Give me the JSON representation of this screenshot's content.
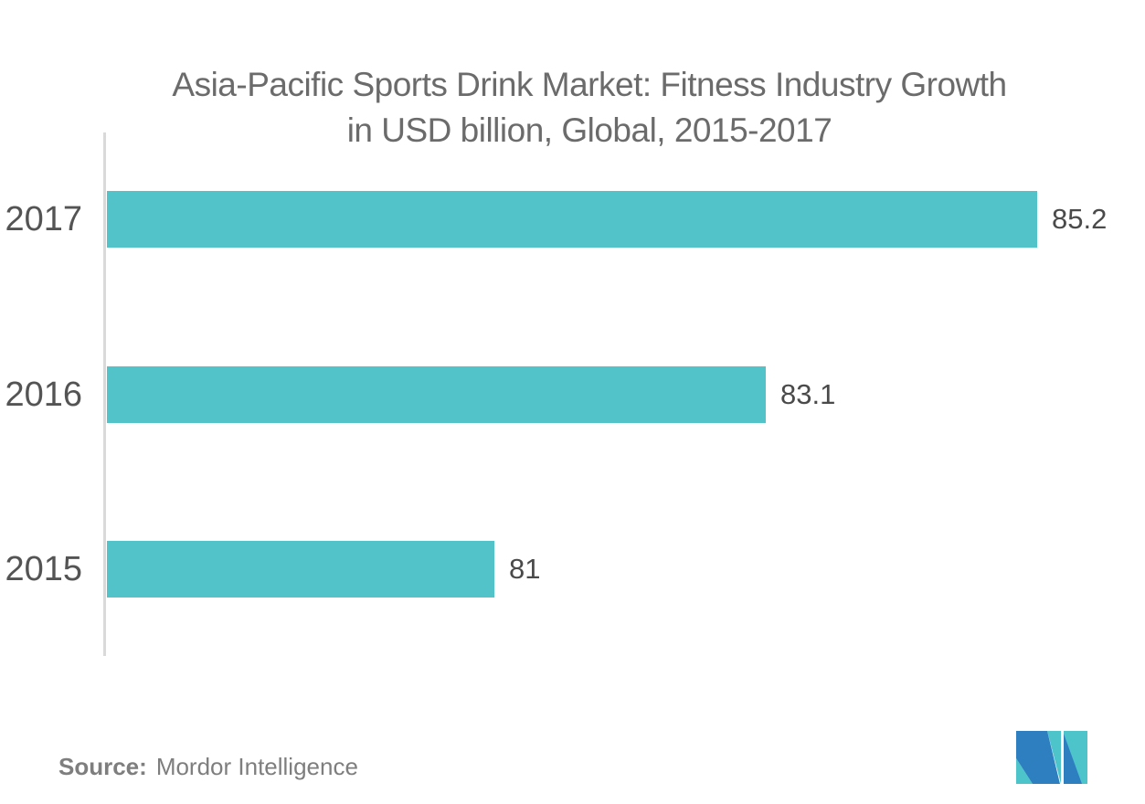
{
  "title": {
    "line1": "Asia-Pacific Sports Drink Market: Fitness Industry Growth",
    "line2": "in USD billion, Global, 2015-2017"
  },
  "chart_data": {
    "type": "bar",
    "orientation": "horizontal",
    "title": "Asia-Pacific Sports Drink Market: Fitness Industry Growth in USD billion, Global, 2015-2017",
    "categories": [
      "2017",
      "2016",
      "2015"
    ],
    "values": [
      85.2,
      83.1,
      81
    ],
    "value_labels": [
      "85.2",
      "83.1",
      "81"
    ],
    "unit": "USD billion",
    "xlim": [
      78,
      86
    ],
    "grid": false,
    "legend": false,
    "bar_color": "#52c3c9",
    "category_label_color": "#545454",
    "value_label_color": "#4a4a4a",
    "axis_line_color": "#d9d9d9",
    "title_color": "#6b6b6b"
  },
  "source": {
    "label": "Source:",
    "text": "Mordor Intelligence",
    "color": "#7e7e7e"
  },
  "logo": {
    "name": "mordor-intelligence-logo",
    "teal": "#4dc4ca",
    "blue": "#2e7fc0"
  }
}
